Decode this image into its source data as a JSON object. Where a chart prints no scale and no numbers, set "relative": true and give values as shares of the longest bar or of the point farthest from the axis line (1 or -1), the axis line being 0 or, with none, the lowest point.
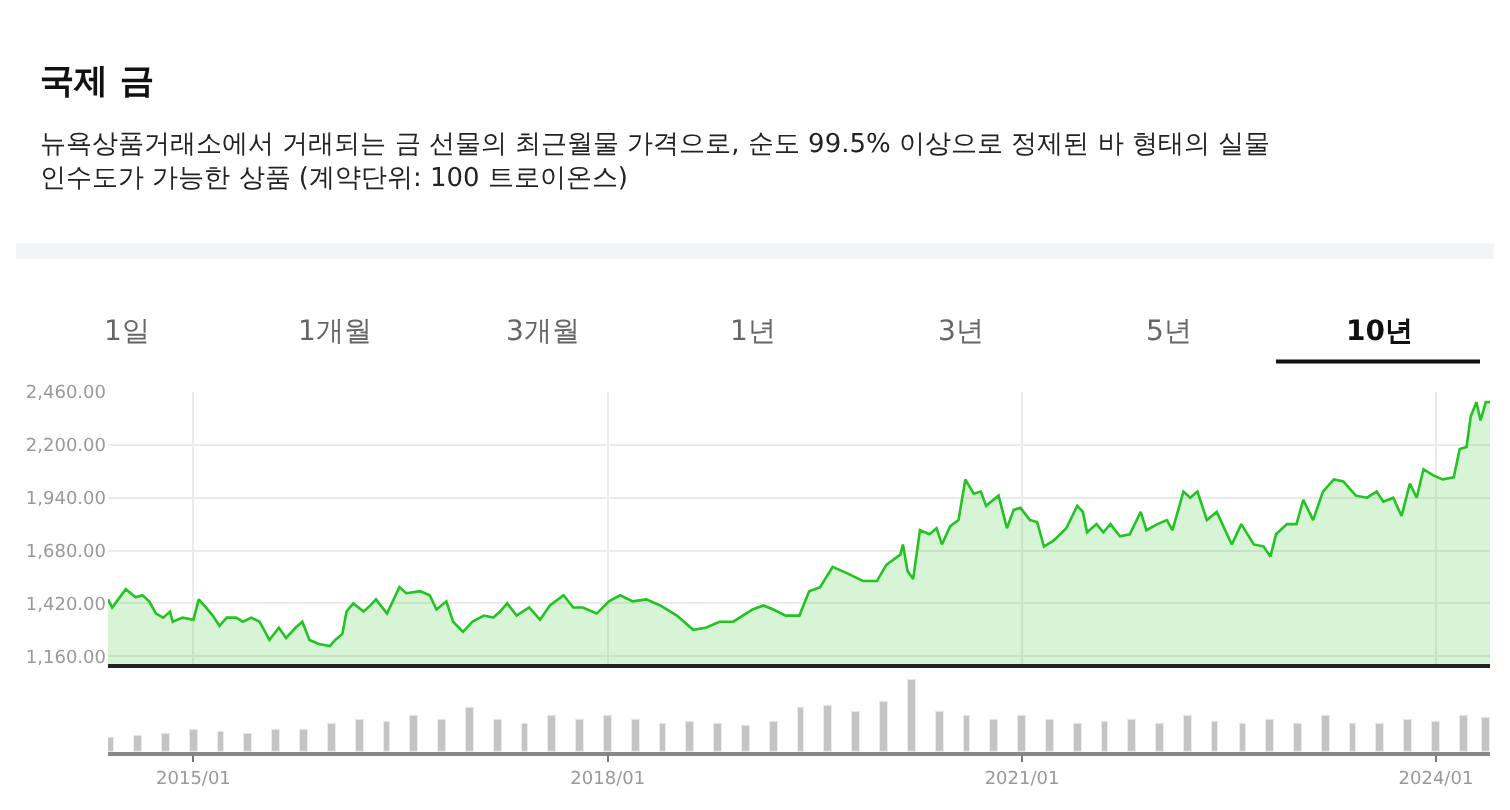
{
  "chart_data": [
    {
      "type": "area",
      "title": "국제 금",
      "subtitle": "뉴욕상품거래소에서 거래되는 금 선물의 최근월물 가격으로, 순도 99.5% 이상으로 정제된 바 형태의 실물 인수도가 가능한 상품 (계약단위: 100 트로이온스)",
      "annotations": [
        "1일",
        "1개월",
        "3개월",
        "1년",
        "3년",
        "5년",
        "10년"
      ],
      "series": [
        {
          "color": "#22c322",
          "x": [
            "2014-05-20",
            "2014-05-31",
            "2014-07-06",
            "2014-08-01",
            "2014-08-19",
            "2014-09-06",
            "2014-09-24",
            "2014-10-13",
            "2014-10-31",
            "2014-11-07",
            "2014-12-03",
            "2015-01-01",
            "2015-01-15",
            "2015-02-03",
            "2015-02-21",
            "2015-03-11",
            "2015-03-30",
            "2015-04-24",
            "2015-05-12",
            "2015-06-03",
            "2015-06-25",
            "2015-07-21",
            "2015-08-15",
            "2015-09-03",
            "2015-09-28",
            "2015-10-16",
            "2015-11-04",
            "2015-11-29",
            "2015-12-28",
            "2016-01-11",
            "2016-01-30",
            "2016-02-10",
            "2016-02-28",
            "2016-03-26",
            "2016-04-13",
            "2016-04-28",
            "2016-05-27",
            "2016-06-29",
            "2016-07-17",
            "2016-08-23",
            "2016-09-17",
            "2016-10-05",
            "2016-10-31",
            "2016-11-18",
            "2016-12-14",
            "2017-01-08",
            "2017-02-07",
            "2017-03-04",
            "2017-03-22",
            "2017-04-10",
            "2017-05-05",
            "2017-06-07",
            "2017-07-06",
            "2017-08-01",
            "2017-09-06",
            "2017-10-02",
            "2017-10-27",
            "2017-12-03",
            "2018-01-04",
            "2018-02-03",
            "2018-03-08",
            "2018-04-13",
            "2018-05-20",
            "2018-07-03",
            "2018-08-15",
            "2018-09-17",
            "2018-10-24",
            "2018-11-29",
            "2019-01-19",
            "2019-02-17",
            "2019-03-15",
            "2019-04-17",
            "2019-05-23",
            "2019-06-18",
            "2019-07-17",
            "2019-08-19",
            "2019-09-24",
            "2019-11-07",
            "2019-12-14",
            "2020-01-08",
            "2020-02-14",
            "2020-02-21",
            "2020-03-04",
            "2020-03-19",
            "2020-04-06",
            "2020-05-01",
            "2020-05-20",
            "2020-06-03",
            "2020-06-25",
            "2020-07-17",
            "2020-08-04",
            "2020-08-26",
            "2020-09-14",
            "2020-09-28",
            "2020-10-31",
            "2020-11-22",
            "2020-12-10",
            "2020-12-28",
            "2021-01-22",
            "2021-02-10",
            "2021-02-28",
            "2021-03-26",
            "2021-04-28",
            "2021-05-27",
            "2021-06-11",
            "2021-06-22",
            "2021-07-17",
            "2021-08-04",
            "2021-08-23",
            "2021-09-17",
            "2021-10-13",
            "2021-11-11",
            "2021-11-26",
            "2021-12-25",
            "2022-01-19",
            "2022-02-03",
            "2022-03-04",
            "2022-03-22",
            "2022-04-10",
            "2022-05-05",
            "2022-05-31",
            "2022-07-10",
            "2022-08-04",
            "2022-09-06",
            "2022-10-02",
            "2022-10-20",
            "2022-11-04",
            "2022-12-03",
            "2022-12-28",
            "2023-01-15",
            "2023-02-10",
            "2023-03-08",
            "2023-04-06",
            "2023-05-01",
            "2023-06-03",
            "2023-07-03",
            "2023-07-28",
            "2023-08-15",
            "2023-09-10",
            "2023-10-02",
            "2023-10-24",
            "2023-11-11",
            "2023-11-29",
            "2023-12-25",
            "2024-01-19",
            "2024-02-17",
            "2024-03-04",
            "2024-03-22",
            "2024-04-02",
            "2024-04-17",
            "2024-04-28",
            "2024-05-12",
            "2024-05-23"
          ],
          "values": [
            1440,
            1400,
            1490,
            1450,
            1460,
            1430,
            1370,
            1350,
            1380,
            1330,
            1350,
            1340,
            1440,
            1400,
            1360,
            1310,
            1350,
            1350,
            1330,
            1350,
            1330,
            1240,
            1300,
            1250,
            1300,
            1330,
            1240,
            1220,
            1210,
            1240,
            1270,
            1380,
            1420,
            1380,
            1410,
            1440,
            1370,
            1500,
            1470,
            1480,
            1460,
            1390,
            1430,
            1330,
            1280,
            1330,
            1360,
            1350,
            1380,
            1420,
            1360,
            1400,
            1340,
            1410,
            1460,
            1400,
            1400,
            1370,
            1430,
            1460,
            1430,
            1440,
            1410,
            1360,
            1290,
            1300,
            1330,
            1330,
            1390,
            1410,
            1390,
            1360,
            1360,
            1480,
            1500,
            1600,
            1570,
            1530,
            1530,
            1610,
            1660,
            1710,
            1580,
            1540,
            1780,
            1760,
            1790,
            1710,
            1800,
            1830,
            2030,
            1960,
            1970,
            1900,
            1950,
            1790,
            1880,
            1890,
            1830,
            1820,
            1700,
            1730,
            1790,
            1900,
            1870,
            1770,
            1810,
            1770,
            1810,
            1750,
            1760,
            1870,
            1780,
            1810,
            1830,
            1780,
            1970,
            1940,
            1970,
            1830,
            1870,
            1710,
            1810,
            1710,
            1700,
            1650,
            1760,
            1810,
            1810,
            1930,
            1830,
            1970,
            2030,
            2020,
            1950,
            1940,
            1970,
            1920,
            1940,
            1850,
            2010,
            1940,
            2080,
            2050,
            2030,
            2040,
            2180,
            2190,
            2340,
            2410,
            2320,
            2410,
            2410
          ]
        }
      ],
      "xlim": [
        "2014-05-20",
        "2024-05-23"
      ],
      "ylim": [
        1120,
        2460
      ],
      "yticks": [
        {
          "value": 1160,
          "label": "1,160.00"
        },
        {
          "value": 1420,
          "label": "1,420.00"
        },
        {
          "value": 1680,
          "label": "1,680.00"
        },
        {
          "value": 1940,
          "label": "1,940.00"
        },
        {
          "value": 2200,
          "label": "2,200.00"
        },
        {
          "value": 2460,
          "label": "2,460.00"
        }
      ],
      "xticks": [
        {
          "value": "2015-01",
          "label": null
        },
        {
          "value": "2018-01",
          "label": null
        },
        {
          "value": "2021-01",
          "label": null
        },
        {
          "value": "2024-01",
          "label": null
        }
      ],
      "grid": true,
      "tick_labels": "y"
    },
    {
      "type": "bar",
      "relative": true,
      "color": "#c4c4c4",
      "grid": false,
      "tick_labels": "x",
      "x": [
        "2014-05-27",
        "2014-08-08",
        "2014-10-20",
        "2015-01-01",
        "2015-03-15",
        "2015-05-27",
        "2015-08-08",
        "2015-10-20",
        "2016-01-01",
        "2016-03-15",
        "2016-05-27",
        "2016-08-08",
        "2016-10-20",
        "2017-01-01",
        "2017-03-15",
        "2017-05-27",
        "2017-08-08",
        "2017-10-20",
        "2018-01-01",
        "2018-03-15",
        "2018-05-27",
        "2018-08-08",
        "2018-10-20",
        "2019-01-01",
        "2019-03-15",
        "2019-05-27",
        "2019-08-08",
        "2019-10-20",
        "2020-01-01",
        "2020-03-15",
        "2020-05-27",
        "2020-08-08",
        "2020-10-20",
        "2021-01-01",
        "2021-03-15",
        "2021-05-27",
        "2021-08-08",
        "2021-10-20",
        "2022-01-01",
        "2022-03-15",
        "2022-05-27",
        "2022-08-08",
        "2022-10-20",
        "2023-01-01",
        "2023-03-15",
        "2023-05-27",
        "2023-08-08",
        "2023-10-20",
        "2024-01-01",
        "2024-03-15",
        "2024-05-12"
      ],
      "values": [
        0.2,
        0.22,
        0.25,
        0.3,
        0.28,
        0.25,
        0.3,
        0.3,
        0.4,
        0.45,
        0.42,
        0.5,
        0.45,
        0.6,
        0.45,
        0.4,
        0.5,
        0.45,
        0.5,
        0.45,
        0.4,
        0.42,
        0.4,
        0.35,
        0.42,
        0.6,
        0.65,
        0.55,
        0.7,
        1.0,
        0.55,
        0.5,
        0.45,
        0.5,
        0.45,
        0.4,
        0.42,
        0.45,
        0.4,
        0.5,
        0.42,
        0.4,
        0.45,
        0.4,
        0.5,
        0.38,
        0.4,
        0.45,
        0.42,
        0.5,
        0.48
      ],
      "xlim": [
        "2014-05-20",
        "2024-05-23"
      ],
      "xticks": [
        {
          "value": "2015-01",
          "label": "2015/01"
        },
        {
          "value": "2018-01",
          "label": "2018/01"
        },
        {
          "value": "2021-01",
          "label": "2021/01"
        },
        {
          "value": "2024-01",
          "label": "2024/01"
        }
      ]
    }
  ]
}
